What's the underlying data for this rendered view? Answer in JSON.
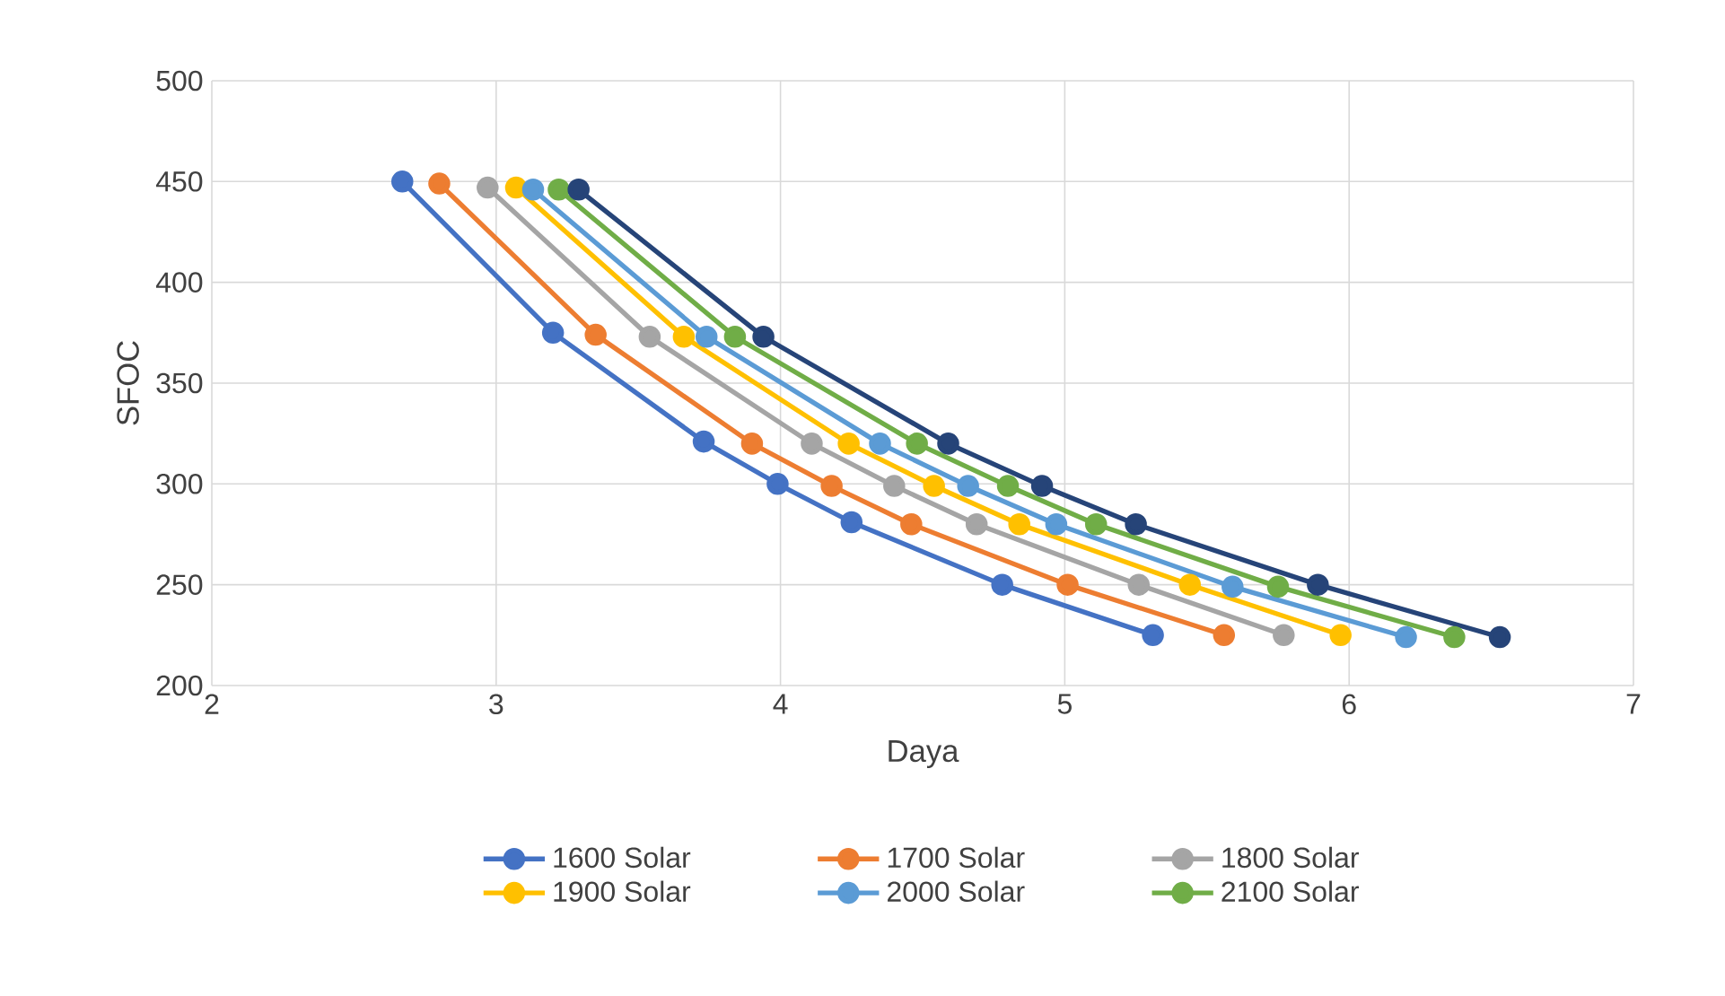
{
  "chart_data": {
    "type": "line",
    "xlabel": "Daya",
    "ylabel": "SFOC",
    "xlim": [
      2,
      7
    ],
    "ylim": [
      200,
      500
    ],
    "xticks": [
      2,
      3,
      4,
      5,
      6,
      7
    ],
    "yticks": [
      200,
      250,
      300,
      350,
      400,
      450,
      500
    ],
    "grid": true,
    "legend": "bottom",
    "marker": "circle",
    "line_style": "solid",
    "series": [
      {
        "name": "1600 Solar",
        "color": "#4472c4",
        "x": [
          2.67,
          3.2,
          3.73,
          3.99,
          4.25,
          4.78,
          5.31
        ],
        "values": [
          450,
          375,
          321,
          300,
          281,
          250,
          225
        ]
      },
      {
        "name": "1700 Solar",
        "color": "#ed7d31",
        "x": [
          2.8,
          3.35,
          3.9,
          4.18,
          4.46,
          5.01,
          5.56
        ],
        "values": [
          449,
          374,
          320,
          299,
          280,
          250,
          225
        ]
      },
      {
        "name": "1800 Solar",
        "color": "#a5a5a5",
        "x": [
          2.97,
          3.54,
          4.11,
          4.4,
          4.69,
          5.26,
          5.77
        ],
        "values": [
          447,
          373,
          320,
          299,
          280,
          250,
          225
        ]
      },
      {
        "name": "1900 Solar",
        "color": "#ffc000",
        "x": [
          3.07,
          3.66,
          4.24,
          4.54,
          4.84,
          5.44,
          5.97
        ],
        "values": [
          447,
          373,
          320,
          299,
          280,
          250,
          225
        ]
      },
      {
        "name": "2000 Solar",
        "color": "#5b9bd5",
        "x": [
          3.13,
          3.74,
          4.35,
          4.66,
          4.97,
          5.59,
          6.2
        ],
        "values": [
          446,
          373,
          320,
          299,
          280,
          249,
          224
        ]
      },
      {
        "name": "2100 Solar",
        "color": "#70ad47",
        "x": [
          3.22,
          3.84,
          4.48,
          4.8,
          5.11,
          5.75,
          6.37
        ],
        "values": [
          446,
          373,
          320,
          299,
          280,
          249,
          224
        ]
      },
      {
        "color": "#264478",
        "x": [
          3.29,
          3.94,
          4.59,
          4.92,
          5.25,
          5.89,
          6.53
        ],
        "values": [
          446,
          373,
          320,
          299,
          280,
          250,
          224
        ]
      }
    ]
  }
}
